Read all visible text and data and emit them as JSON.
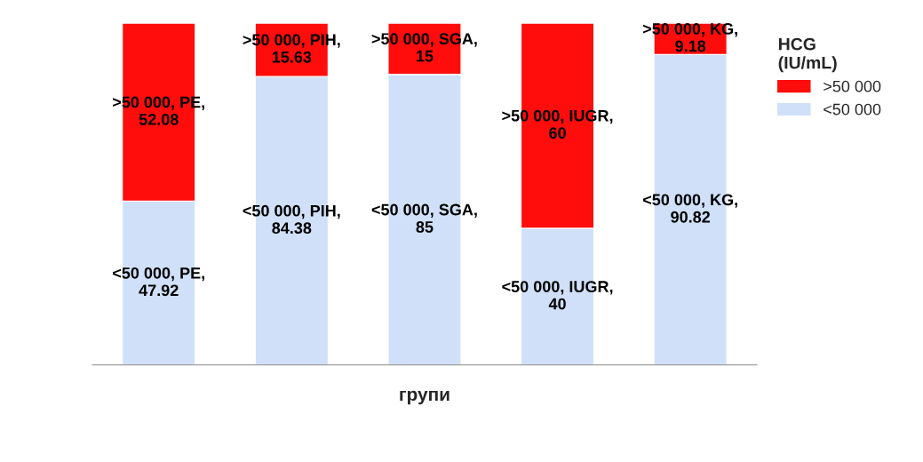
{
  "chart_data": {
    "type": "bar",
    "stacked": true,
    "xlabel": "групи",
    "legend_title": "HCG (IU/mL)",
    "legend": "right",
    "categories": [
      null,
      null,
      null,
      null,
      null
    ],
    "tick_labels": false,
    "series": [
      {
        "name": "<50 000",
        "color": "#cfe0f8",
        "values": [
          47.92,
          84.38,
          85,
          40,
          90.82
        ],
        "value_labels": [
          "<50 000, PE, 47.92",
          "<50 000, PIH, 84.38",
          "<50 000, SGA, 85",
          "<50 000, IUGR, 40",
          "<50 000, KG, 90.82"
        ]
      },
      {
        "name": ">50 000",
        "color": "#ff0d0d",
        "values": [
          52.08,
          15.63,
          15,
          60,
          9.18
        ],
        "value_labels": [
          ">50 000, PE, 52.08",
          ">50 000, PIH, 15.63",
          ">50 000, SGA, 15",
          ">50 000, IUGR, 60",
          ">50 000, KG, 9.18"
        ]
      }
    ]
  }
}
